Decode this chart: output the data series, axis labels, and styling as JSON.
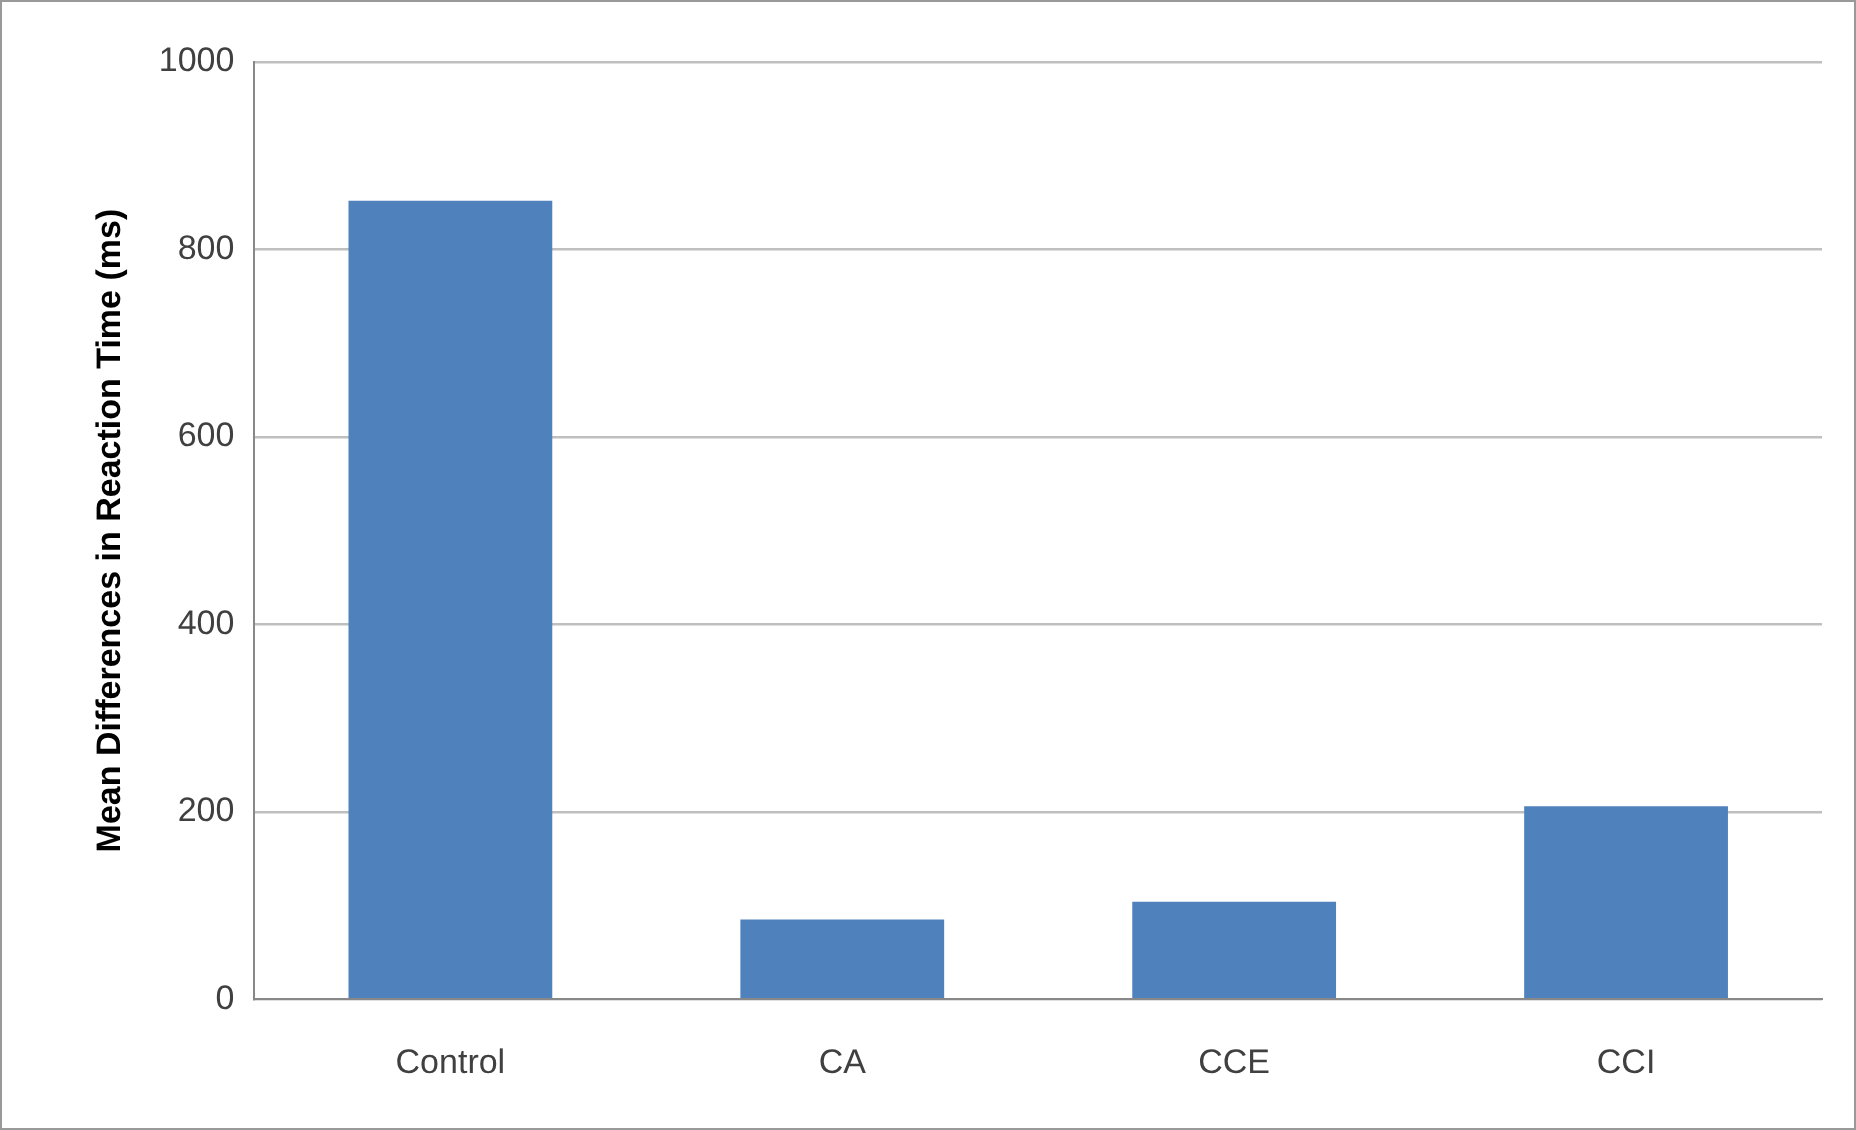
{
  "chart_data": {
    "type": "bar",
    "ylabel": "Mean Differences in Reaction Time (ms)",
    "categories": [
      "Control",
      "CA",
      "CCE",
      "CCI"
    ],
    "values": [
      852,
      85,
      104,
      206
    ],
    "color": "#4f81bd",
    "ylim": [
      0,
      1000
    ],
    "yticks": [
      0,
      200,
      400,
      600,
      800,
      1000
    ],
    "grid": "y"
  }
}
